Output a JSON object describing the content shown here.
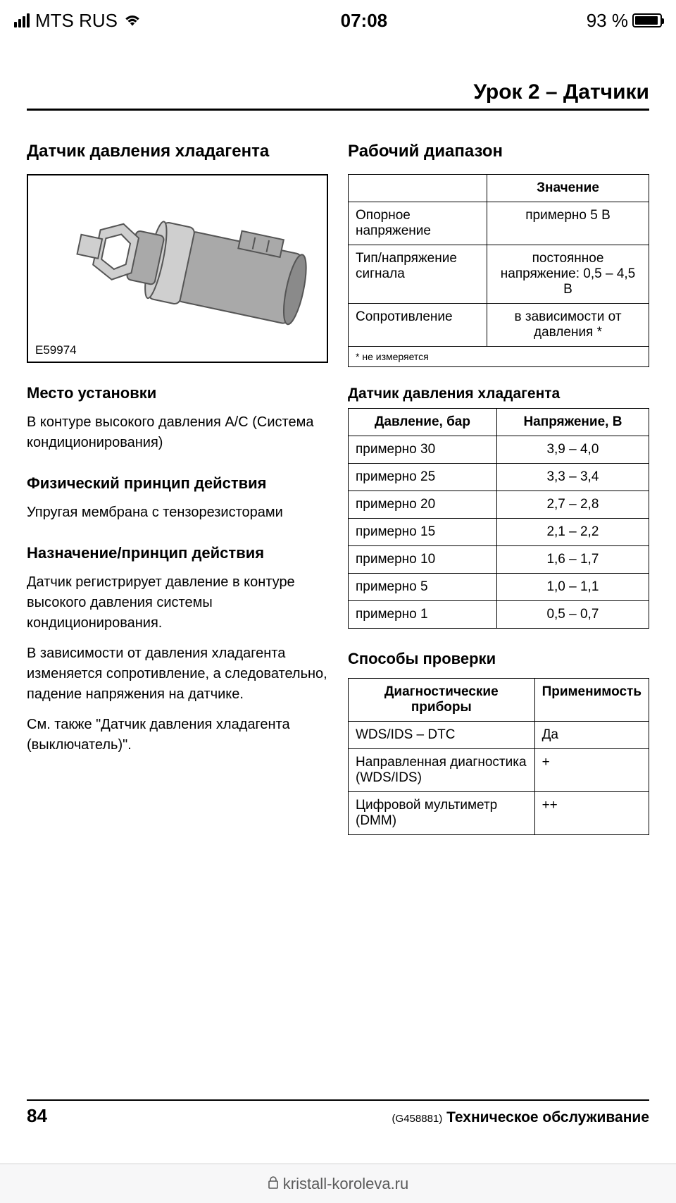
{
  "status": {
    "carrier": "MTS RUS",
    "time": "07:08",
    "battery_pct": "93 %",
    "battery_fill_pct": 93
  },
  "bottombar": {
    "url": "kristall-koroleva.ru"
  },
  "doc": {
    "header": "Урок 2 – Датчики",
    "page_number": "84",
    "footer_code": "(G458881)",
    "footer_title": "Техническое обслуживание",
    "figure_label": "E59974",
    "left": {
      "title_main": "Датчик давления хладагента",
      "h_location": "Место установки",
      "location_text": "В контуре высокого давления A/C (Система кондиционирования)",
      "h_principle": "Физический принцип действия",
      "principle_text": "Упругая мембрана с тензорезисторами",
      "h_purpose": "Назначение/принцип действия",
      "purpose_p1": "Датчик регистрирует давление в контуре высокого давления системы кондиционирования.",
      "purpose_p2": "В зависимости от давления хладагента изменяется сопротивление, а следовательно, падение напряжения на датчике.",
      "purpose_p3": "См. также \"Датчик давления хладагента (выключатель)\"."
    },
    "right": {
      "h_range": "Рабочий диапазон",
      "range_table": {
        "header_value": "Значение",
        "rows": [
          {
            "label": "Опорное напряжение",
            "value": "примерно 5 В"
          },
          {
            "label": "Тип/напряжение сигнала",
            "value": "постоянное напряжение: 0,5 – 4,5 В"
          },
          {
            "label": "Сопротивление",
            "value": "в зависимости от давления *"
          }
        ],
        "footnote": "* не измеряется"
      },
      "pressure_caption": "Датчик давления хладагента",
      "pressure_table": {
        "head_pressure": "Давление, бар",
        "head_voltage": "Напряжение, В",
        "rows": [
          {
            "p": "примерно 30",
            "v": "3,9 – 4,0"
          },
          {
            "p": "примерно 25",
            "v": "3,3 – 3,4"
          },
          {
            "p": "примерно 20",
            "v": "2,7 – 2,8"
          },
          {
            "p": "примерно 15",
            "v": "2,1 – 2,2"
          },
          {
            "p": "примерно 10",
            "v": "1,6 – 1,7"
          },
          {
            "p": "примерно 5",
            "v": "1,0 – 1,1"
          },
          {
            "p": "примерно 1",
            "v": "0,5 – 0,7"
          }
        ]
      },
      "h_methods": "Способы проверки",
      "methods_table": {
        "head_tool": "Диагностические приборы",
        "head_apply": "Применимость",
        "rows": [
          {
            "tool": "WDS/IDS – DTC",
            "apply": "Да"
          },
          {
            "tool": "Направленная диагностика (WDS/IDS)",
            "apply": "+"
          },
          {
            "tool": "Цифровой мультиметр (DMM)",
            "apply": "++"
          }
        ]
      }
    }
  },
  "figure": {
    "bg": "#ffffff",
    "stroke": "#555555",
    "fill_light": "#cfcfcf",
    "fill_mid": "#a9a9a9",
    "fill_dark": "#8a8a8a"
  }
}
